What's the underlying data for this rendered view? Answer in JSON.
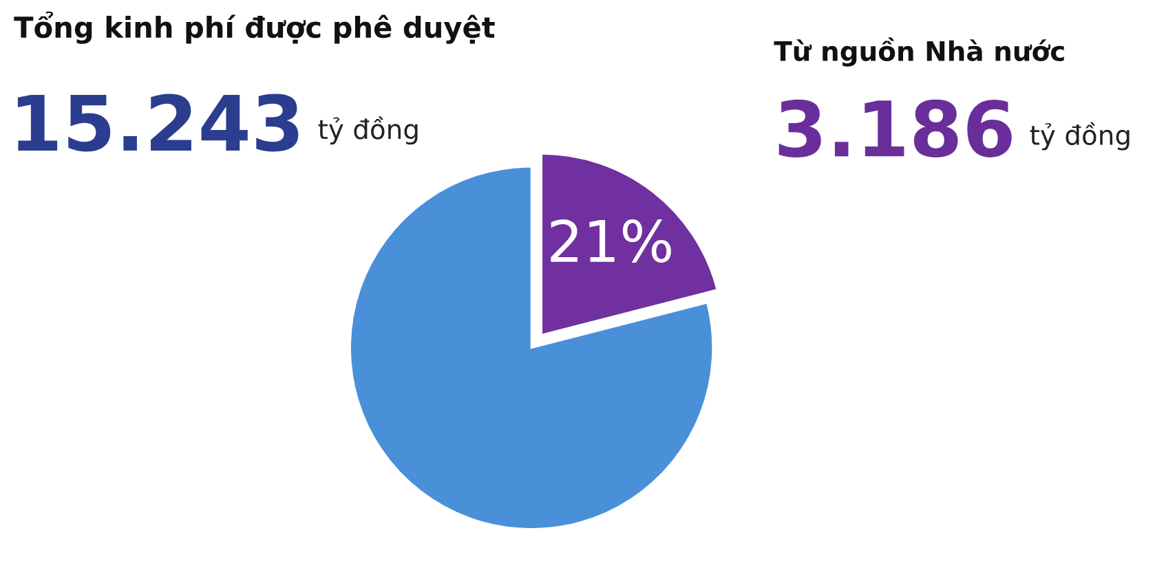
{
  "chart_data": {
    "type": "pie",
    "title": "Tổng kinh phí được phê duyệt",
    "categories": [
      null,
      null
    ],
    "values": [
      21,
      79
    ],
    "colors": [
      "#7030a0",
      "#4a90d9"
    ],
    "value_labels": [
      "21%",
      null
    ],
    "annotations": [
      "15.243",
      "tỷ đồng",
      "Từ nguồn Nhà nước",
      "3.186",
      "tỷ đồng"
    ]
  }
}
